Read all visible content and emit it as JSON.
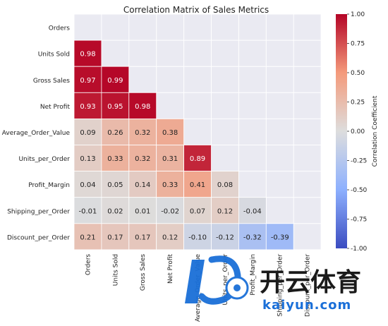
{
  "chart_data": {
    "type": "heatmap",
    "title": "Correlation Matrix of Sales Metrics",
    "labels": [
      "Orders",
      "Units Sold",
      "Gross Sales",
      "Net Profit",
      "Average_Order_Value",
      "Units_per_Order",
      "Profit_Margin",
      "Shipping_per_Order",
      "Discount_per_Order"
    ],
    "mask": "upper-triangle-including-diagonal",
    "rows": [
      {
        "row": "Units Sold",
        "values": [
          0.98
        ]
      },
      {
        "row": "Gross Sales",
        "values": [
          0.97,
          0.99
        ]
      },
      {
        "row": "Net Profit",
        "values": [
          0.93,
          0.95,
          0.98
        ]
      },
      {
        "row": "Average_Order_Value",
        "values": [
          0.09,
          0.26,
          0.32,
          0.38
        ]
      },
      {
        "row": "Units_per_Order",
        "values": [
          0.13,
          0.33,
          0.32,
          0.31,
          0.89
        ]
      },
      {
        "row": "Profit_Margin",
        "values": [
          0.04,
          0.05,
          0.14,
          0.33,
          0.41,
          0.08
        ]
      },
      {
        "row": "Shipping_per_Order",
        "values": [
          -0.01,
          0.02,
          0.01,
          -0.02,
          0.07,
          0.12,
          -0.04
        ]
      },
      {
        "row": "Discount_per_Order",
        "values": [
          0.21,
          0.17,
          0.17,
          0.12,
          -0.1,
          -0.12,
          -0.32,
          -0.39
        ]
      }
    ],
    "colorbar": {
      "label": "Correlation Coefficient",
      "range": [
        -1.0,
        1.0
      ],
      "ticks": [
        "-1.00",
        "-0.75",
        "-0.50",
        "-0.25",
        "0.00",
        "0.25",
        "0.50",
        "0.75",
        "1.00"
      ],
      "colormap": "coolwarm"
    },
    "grid": true
  },
  "watermark": {
    "text": "开云体育",
    "url_text": "kaiyun.com"
  }
}
